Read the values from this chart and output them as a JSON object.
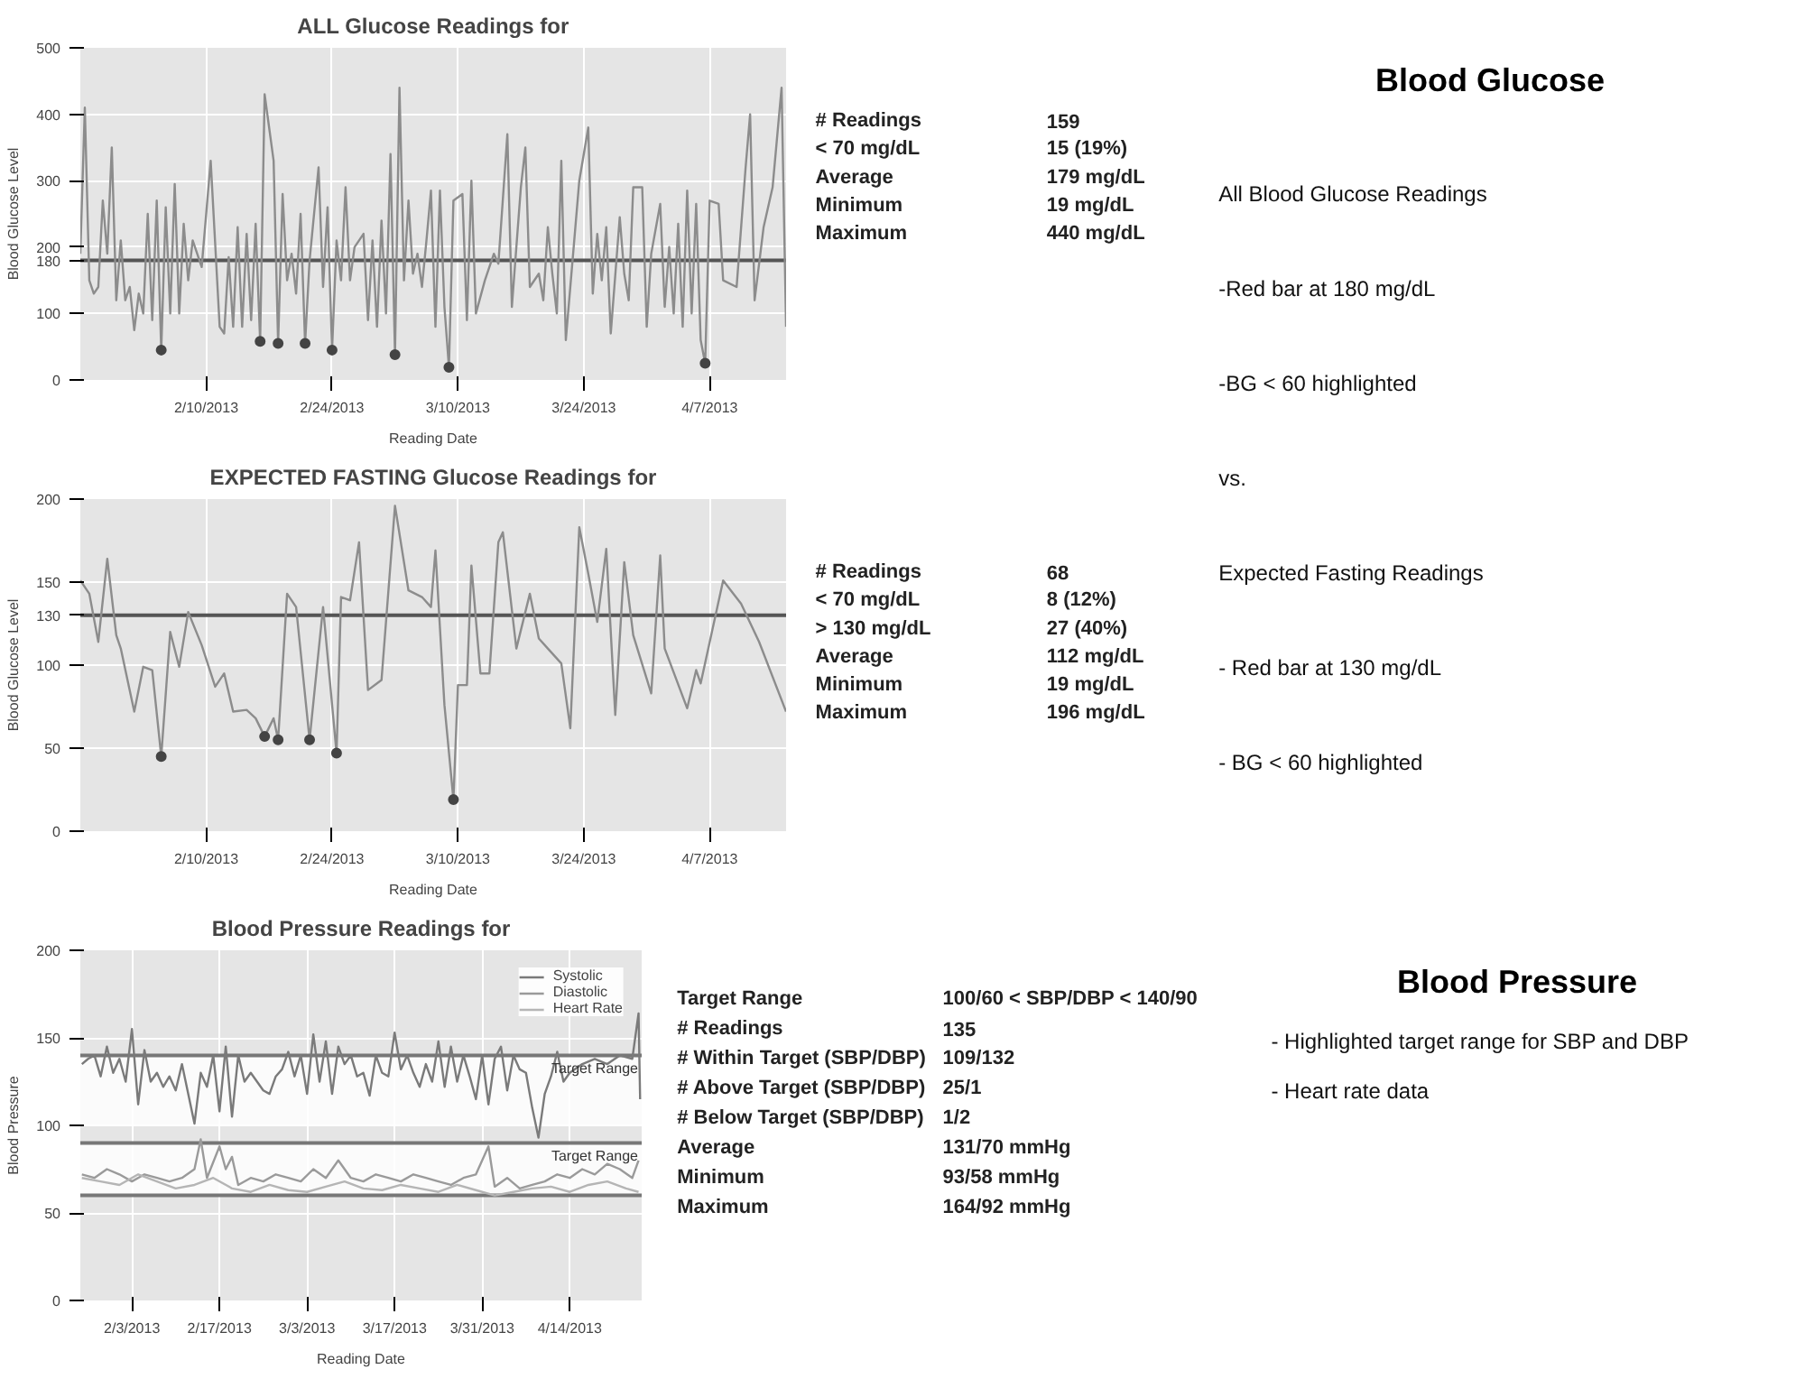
{
  "chart_data": [
    {
      "type": "line",
      "title": "ALL Glucose Readings for",
      "xlabel": "Reading Date",
      "ylabel": "Blood Glucose Level",
      "xlim": [
        "2013-01-27",
        "2013-04-15T12:00"
      ],
      "ylim": [
        0,
        500
      ],
      "xticks": [
        {
          "value": "2013-02-10",
          "label": "2/10/2013"
        },
        {
          "value": "2013-02-24",
          "label": "2/24/2013"
        },
        {
          "value": "2013-03-10",
          "label": "3/10/2013"
        },
        {
          "value": "2013-03-24",
          "label": "3/24/2013"
        },
        {
          "value": "2013-04-07",
          "label": "4/7/2013"
        }
      ],
      "yticks": [
        0,
        100,
        180,
        200,
        300,
        400,
        500
      ],
      "grid": true,
      "ref_lines": [
        {
          "axis": "y",
          "value": 180,
          "color": "#555555"
        }
      ],
      "series": [
        {
          "type": "line",
          "color": "#8c8c8c",
          "x": [
            "2013-01-27",
            "2013-01-27T12:00",
            "2013-01-28",
            "2013-01-28T12:00",
            "2013-01-29",
            "2013-01-29T12:00",
            "2013-01-30",
            "2013-01-30T12:00",
            "2013-01-31",
            "2013-01-31T12:00",
            "2013-02-01",
            "2013-02-01T12:00",
            "2013-02-02",
            "2013-02-02T12:00",
            "2013-02-03",
            "2013-02-03T12:00",
            "2013-02-04",
            "2013-02-04T12:00",
            "2013-02-05",
            "2013-02-05T12:00",
            "2013-02-06",
            "2013-02-06T12:00",
            "2013-02-07",
            "2013-02-07T12:00",
            "2013-02-08",
            "2013-02-08T12:00",
            "2013-02-09T12:00",
            "2013-02-10T12:00",
            "2013-02-11T12:00",
            "2013-02-12",
            "2013-02-12T12:00",
            "2013-02-13",
            "2013-02-13T12:00",
            "2013-02-14",
            "2013-02-14T12:00",
            "2013-02-15",
            "2013-02-15T12:00",
            "2013-02-16",
            "2013-02-16T12:00",
            "2013-02-17T12:00",
            "2013-02-18",
            "2013-02-18T12:00",
            "2013-02-19",
            "2013-02-19T12:00",
            "2013-02-20",
            "2013-02-20T12:00",
            "2013-02-21",
            "2013-02-21T12:00",
            "2013-02-22T12:00",
            "2013-02-23",
            "2013-02-23T12:00",
            "2013-02-24",
            "2013-02-24T12:00",
            "2013-02-25",
            "2013-02-25T12:00",
            "2013-02-26",
            "2013-02-26T12:00",
            "2013-02-27T12:00",
            "2013-02-28",
            "2013-02-28T12:00",
            "2013-03-01",
            "2013-03-01T12:00",
            "2013-03-02",
            "2013-03-02T12:00",
            "2013-03-03",
            "2013-03-03T12:00",
            "2013-03-04",
            "2013-03-04T12:00",
            "2013-03-05",
            "2013-03-05T12:00",
            "2013-03-06",
            "2013-03-06T12:00",
            "2013-03-07",
            "2013-03-07T12:00",
            "2013-03-08",
            "2013-03-08T12:00",
            "2013-03-09",
            "2013-03-09T12:00",
            "2013-03-10T12:00",
            "2013-03-11",
            "2013-03-11T12:00",
            "2013-03-12",
            "2013-03-13",
            "2013-03-14",
            "2013-03-14T12:00",
            "2013-03-15T12:00",
            "2013-03-16",
            "2013-03-17",
            "2013-03-17T12:00",
            "2013-03-18",
            "2013-03-19",
            "2013-03-19T12:00",
            "2013-03-20",
            "2013-03-20T12:00",
            "2013-03-21",
            "2013-03-21T12:00",
            "2013-03-22",
            "2013-03-23",
            "2013-03-23T12:00",
            "2013-03-24T12:00",
            "2013-03-25",
            "2013-03-25T12:00",
            "2013-03-26",
            "2013-03-26T12:00",
            "2013-03-27",
            "2013-03-28",
            "2013-03-28T12:00",
            "2013-03-29",
            "2013-03-29T12:00",
            "2013-03-30T12:00",
            "2013-03-31",
            "2013-03-31T12:00",
            "2013-04-01T12:00",
            "2013-04-02",
            "2013-04-02T12:00",
            "2013-04-03",
            "2013-04-03T12:00",
            "2013-04-04",
            "2013-04-04T12:00",
            "2013-04-05",
            "2013-04-05T12:00",
            "2013-04-06",
            "2013-04-06T12:00",
            "2013-04-07",
            "2013-04-08",
            "2013-04-08T12:00",
            "2013-04-10",
            "2013-04-11",
            "2013-04-11T12:00",
            "2013-04-12",
            "2013-04-13",
            "2013-04-14",
            "2013-04-15",
            "2013-04-15T12:00"
          ],
          "values": [
            190,
            410,
            150,
            130,
            140,
            270,
            190,
            350,
            120,
            210,
            120,
            140,
            75,
            130,
            100,
            250,
            90,
            270,
            45,
            260,
            100,
            295,
            100,
            235,
            150,
            210,
            170,
            330,
            80,
            70,
            185,
            80,
            230,
            80,
            220,
            90,
            235,
            58,
            430,
            330,
            55,
            280,
            150,
            190,
            130,
            250,
            55,
            180,
            320,
            140,
            260,
            45,
            210,
            150,
            290,
            150,
            200,
            220,
            90,
            210,
            80,
            240,
            100,
            340,
            38,
            440,
            150,
            270,
            160,
            190,
            140,
            210,
            285,
            80,
            285,
            110,
            19,
            270,
            280,
            90,
            300,
            100,
            150,
            190,
            175,
            370,
            110,
            290,
            350,
            140,
            160,
            120,
            230,
            160,
            100,
            330,
            60,
            220,
            300,
            380,
            130,
            220,
            150,
            230,
            70,
            245,
            160,
            120,
            290,
            290,
            80,
            190,
            265,
            110,
            200,
            100,
            235,
            80,
            285,
            100,
            265,
            60,
            25,
            270,
            265,
            150,
            140,
            320,
            400,
            120,
            230,
            290,
            440,
            80
          ]
        },
        {
          "type": "scatter",
          "marker": "circle",
          "color": "#444444",
          "x": [
            "2013-02-05",
            "2013-02-16",
            "2013-02-18",
            "2013-02-21",
            "2013-02-24",
            "2013-03-03",
            "2013-03-09",
            "2013-04-06T12:00"
          ],
          "values": [
            45,
            58,
            55,
            55,
            45,
            38,
            19,
            25
          ]
        }
      ],
      "annotations": [
        "# Readings",
        "159",
        "< 70 mg/dL",
        "15 (19%)",
        "Average",
        "179 mg/dL",
        "Minimum",
        "19 mg/dL",
        "Maximum",
        "440 mg/dL"
      ]
    },
    {
      "type": "other",
      "title": "Blood Glucose",
      "annotations": [
        "All Blood Glucose Readings",
        "-Red bar at 180 mg/dL",
        "-BG < 60 highlighted",
        "vs.",
        "Expected Fasting Readings",
        "- Red bar at 130 mg/dL",
        "- BG < 60 highlighted"
      ]
    },
    {
      "type": "line",
      "title": "EXPECTED FASTING Glucose Readings for",
      "xlabel": "Reading Date",
      "ylabel": "Blood Glucose Level",
      "xlim": [
        "2013-01-27",
        "2013-04-15T12:00"
      ],
      "ylim": [
        0,
        200
      ],
      "xticks": [
        {
          "value": "2013-02-10",
          "label": "2/10/2013"
        },
        {
          "value": "2013-02-24",
          "label": "2/24/2013"
        },
        {
          "value": "2013-03-10",
          "label": "3/10/2013"
        },
        {
          "value": "2013-03-24",
          "label": "3/24/2013"
        },
        {
          "value": "2013-04-07",
          "label": "4/7/2013"
        }
      ],
      "yticks": [
        0,
        50,
        100,
        130,
        150,
        200
      ],
      "grid": true,
      "ref_lines": [
        {
          "axis": "y",
          "value": 130,
          "color": "#555555"
        }
      ],
      "series": [
        {
          "type": "line",
          "color": "#8c8c8c",
          "x": [
            "2013-01-27",
            "2013-01-28",
            "2013-01-29",
            "2013-01-30",
            "2013-01-31",
            "2013-01-31T12:00",
            "2013-02-02",
            "2013-02-03",
            "2013-02-04",
            "2013-02-05",
            "2013-02-06",
            "2013-02-07",
            "2013-02-08",
            "2013-02-09T12:00",
            "2013-02-11",
            "2013-02-12",
            "2013-02-13",
            "2013-02-14T12:00",
            "2013-02-15T12:00",
            "2013-02-16T12:00",
            "2013-02-17T12:00",
            "2013-02-18",
            "2013-02-19",
            "2013-02-20",
            "2013-02-21T12:00",
            "2013-02-23",
            "2013-02-24T12:00",
            "2013-02-25",
            "2013-02-26",
            "2013-02-27",
            "2013-02-28",
            "2013-03-01T12:00",
            "2013-03-03",
            "2013-03-04T12:00",
            "2013-03-06",
            "2013-03-07",
            "2013-03-07T12:00",
            "2013-03-08T12:00",
            "2013-03-09T12:00",
            "2013-03-10",
            "2013-03-11",
            "2013-03-11T12:00",
            "2013-03-12T12:00",
            "2013-03-13T12:00",
            "2013-03-14T12:00",
            "2013-03-15",
            "2013-03-16T12:00",
            "2013-03-18",
            "2013-03-19",
            "2013-03-20",
            "2013-03-21T12:00",
            "2013-03-22T12:00",
            "2013-03-23T12:00",
            "2013-03-24T12:00",
            "2013-03-25T12:00",
            "2013-03-26T12:00",
            "2013-03-27T12:00",
            "2013-03-28T12:00",
            "2013-03-29T12:00",
            "2013-03-31T12:00",
            "2013-04-01T12:00",
            "2013-04-02",
            "2013-04-04T12:00",
            "2013-04-05T12:00",
            "2013-04-06",
            "2013-04-08T12:00",
            "2013-04-10T12:00",
            "2013-04-12T12:00",
            "2013-04-15T12:00"
          ],
          "values": [
            151,
            143,
            114,
            164,
            118,
            110,
            72,
            99,
            97,
            45,
            120,
            99,
            132,
            112,
            87,
            95,
            72,
            73,
            68,
            57,
            68,
            55,
            143,
            135,
            55,
            135,
            47,
            141,
            139,
            174,
            85,
            91,
            196,
            145,
            141,
            135,
            169,
            76,
            19,
            88,
            88,
            160,
            95,
            95,
            174,
            180,
            110,
            143,
            116,
            110,
            101,
            62,
            183,
            155,
            126,
            170,
            70,
            162,
            118,
            83,
            166,
            110,
            74,
            97,
            89,
            151,
            137,
            114,
            72
          ]
        },
        {
          "type": "scatter",
          "marker": "circle",
          "color": "#444444",
          "x": [
            "2013-02-05",
            "2013-02-16T12:00",
            "2013-02-18",
            "2013-02-21T12:00",
            "2013-02-24T12:00",
            "2013-03-09T12:00"
          ],
          "values": [
            45,
            57,
            55,
            55,
            47,
            19
          ]
        }
      ],
      "annotations": [
        "# Readings",
        "68",
        "< 70 mg/dL",
        "8 (12%)",
        "> 130 mg/dL",
        "27 (40%)",
        "Average",
        "112 mg/dL",
        "Minimum",
        "19 mg/dL",
        "Maximum",
        "196 mg/dL"
      ]
    },
    {
      "type": "line",
      "title": "Blood Pressure Readings for",
      "xlabel": "Reading Date",
      "ylabel": "Blood Pressure",
      "xlim": [
        "2013-01-25T18:00",
        "2013-04-25T12:00"
      ],
      "ylim": [
        0,
        200
      ],
      "xticks": [
        {
          "value": "2013-02-03",
          "label": "2/3/2013"
        },
        {
          "value": "2013-02-17",
          "label": "2/17/2013"
        },
        {
          "value": "2013-03-03",
          "label": "3/3/2013"
        },
        {
          "value": "2013-03-17",
          "label": "3/17/2013"
        },
        {
          "value": "2013-03-31",
          "label": "3/31/2013"
        },
        {
          "value": "2013-04-14",
          "label": "4/14/2013"
        }
      ],
      "yticks": [
        0,
        50,
        100,
        150,
        200
      ],
      "grid": true,
      "legend": "top right",
      "bands": [
        {
          "axis": "y",
          "from": 100,
          "to": 140,
          "label": "Target Range",
          "color": "#ffffff"
        },
        {
          "axis": "y",
          "from": 60,
          "to": 90,
          "label": "Target Range",
          "color": "#ffffff"
        }
      ],
      "ref_lines": [
        {
          "axis": "y",
          "value": 140,
          "color": "#777777"
        },
        {
          "axis": "y",
          "value": 90,
          "color": "#777777"
        },
        {
          "axis": "y",
          "value": 60,
          "color": "#777777"
        }
      ],
      "series": [
        {
          "name": "Systolic",
          "color": "#7a7a7a",
          "x": [
            "2013-01-26",
            "2013-01-27",
            "2013-01-28",
            "2013-01-29",
            "2013-01-30",
            "2013-01-31",
            "2013-02-01",
            "2013-02-02",
            "2013-02-03",
            "2013-02-04",
            "2013-02-05",
            "2013-02-06",
            "2013-02-07",
            "2013-02-08",
            "2013-02-09",
            "2013-02-10",
            "2013-02-11",
            "2013-02-12",
            "2013-02-13",
            "2013-02-14",
            "2013-02-15",
            "2013-02-16",
            "2013-02-17",
            "2013-02-18",
            "2013-02-19",
            "2013-02-20",
            "2013-02-21",
            "2013-02-22",
            "2013-02-23",
            "2013-02-24",
            "2013-02-25",
            "2013-02-26",
            "2013-02-27",
            "2013-02-28",
            "2013-03-01",
            "2013-03-02",
            "2013-03-03",
            "2013-03-04",
            "2013-03-05",
            "2013-03-06",
            "2013-03-07",
            "2013-03-08",
            "2013-03-09",
            "2013-03-10",
            "2013-03-11",
            "2013-03-12",
            "2013-03-13",
            "2013-03-14",
            "2013-03-15",
            "2013-03-16",
            "2013-03-17",
            "2013-03-18",
            "2013-03-19",
            "2013-03-20",
            "2013-03-21",
            "2013-03-22",
            "2013-03-23",
            "2013-03-24",
            "2013-03-25",
            "2013-03-26",
            "2013-03-27",
            "2013-03-28",
            "2013-03-29",
            "2013-03-30",
            "2013-03-31",
            "2013-04-01",
            "2013-04-02",
            "2013-04-03",
            "2013-04-04",
            "2013-04-05",
            "2013-04-06",
            "2013-04-07",
            "2013-04-08",
            "2013-04-09",
            "2013-04-10",
            "2013-04-11",
            "2013-04-12",
            "2013-04-13",
            "2013-04-14",
            "2013-04-16",
            "2013-04-18",
            "2013-04-20",
            "2013-04-22",
            "2013-04-24",
            "2013-04-25",
            "2013-04-25T06:00"
          ],
          "values": [
            135,
            138,
            140,
            128,
            145,
            130,
            138,
            125,
            155,
            112,
            143,
            125,
            130,
            122,
            128,
            120,
            135,
            118,
            101,
            130,
            122,
            140,
            108,
            145,
            105,
            140,
            125,
            130,
            125,
            120,
            118,
            128,
            132,
            142,
            128,
            140,
            118,
            152,
            125,
            148,
            118,
            145,
            135,
            140,
            128,
            130,
            117,
            140,
            130,
            128,
            153,
            132,
            140,
            130,
            122,
            135,
            125,
            148,
            122,
            145,
            125,
            140,
            128,
            115,
            140,
            112,
            138,
            145,
            120,
            140,
            132,
            130,
            110,
            93,
            118,
            128,
            142,
            125,
            130,
            135,
            138,
            135,
            140,
            138,
            164,
            115
          ]
        },
        {
          "name": "Diastolic",
          "color": "#9a9a9a",
          "x": [
            "2013-01-26",
            "2013-01-28",
            "2013-01-30",
            "2013-02-01",
            "2013-02-03",
            "2013-02-05",
            "2013-02-07",
            "2013-02-09",
            "2013-02-11",
            "2013-02-13",
            "2013-02-14",
            "2013-02-15",
            "2013-02-17",
            "2013-02-18",
            "2013-02-19",
            "2013-02-20",
            "2013-02-22",
            "2013-02-24",
            "2013-02-26",
            "2013-02-28",
            "2013-03-02",
            "2013-03-04",
            "2013-03-06",
            "2013-03-08",
            "2013-03-10",
            "2013-03-12",
            "2013-03-14",
            "2013-03-16",
            "2013-03-18",
            "2013-03-20",
            "2013-03-22",
            "2013-03-24",
            "2013-03-26",
            "2013-03-28",
            "2013-03-30",
            "2013-04-01",
            "2013-04-02",
            "2013-04-04",
            "2013-04-06",
            "2013-04-08",
            "2013-04-10",
            "2013-04-12",
            "2013-04-14",
            "2013-04-16",
            "2013-04-18",
            "2013-04-20",
            "2013-04-22",
            "2013-04-24",
            "2013-04-25"
          ],
          "values": [
            72,
            70,
            75,
            72,
            68,
            72,
            70,
            68,
            70,
            75,
            92,
            70,
            88,
            75,
            82,
            66,
            70,
            68,
            72,
            70,
            68,
            75,
            70,
            80,
            70,
            68,
            72,
            70,
            68,
            72,
            70,
            68,
            66,
            70,
            72,
            88,
            65,
            70,
            64,
            66,
            68,
            72,
            70,
            75,
            72,
            78,
            75,
            70,
            80
          ]
        },
        {
          "name": "Heart Rate",
          "color": "#b5b5b5",
          "x": [
            "2013-01-26",
            "2013-01-29",
            "2013-02-01",
            "2013-02-04",
            "2013-02-07",
            "2013-02-10",
            "2013-02-13",
            "2013-02-16",
            "2013-02-19",
            "2013-02-22",
            "2013-02-25",
            "2013-02-28",
            "2013-03-03",
            "2013-03-06",
            "2013-03-09",
            "2013-03-12",
            "2013-03-15",
            "2013-03-18",
            "2013-03-21",
            "2013-03-24",
            "2013-03-27",
            "2013-03-30",
            "2013-04-02",
            "2013-04-05",
            "2013-04-08",
            "2013-04-11",
            "2013-04-14",
            "2013-04-17",
            "2013-04-20",
            "2013-04-23",
            "2013-04-25"
          ],
          "values": [
            70,
            68,
            66,
            72,
            68,
            64,
            66,
            70,
            64,
            62,
            66,
            63,
            62,
            65,
            68,
            64,
            63,
            66,
            64,
            62,
            66,
            63,
            60,
            62,
            64,
            65,
            62,
            66,
            68,
            64,
            62
          ]
        }
      ],
      "annotations": [
        "Target Range",
        "100/60 < SBP/DBP < 140/90",
        "# Readings",
        "135",
        "# Within Target (SBP/DBP)",
        "109/132",
        "# Above Target (SBP/DBP)",
        "25/1",
        "# Below Target (SBP/DBP)",
        "1/2",
        "Average",
        "131/70 mmHg",
        "Minimum",
        "93/58 mmHg",
        "Maximum",
        "164/92 mmHg"
      ]
    },
    {
      "type": "other",
      "title": "Blood Pressure",
      "annotations": [
        "- Highlighted target range for SBP and DBP",
        "- Heart rate data"
      ]
    }
  ]
}
